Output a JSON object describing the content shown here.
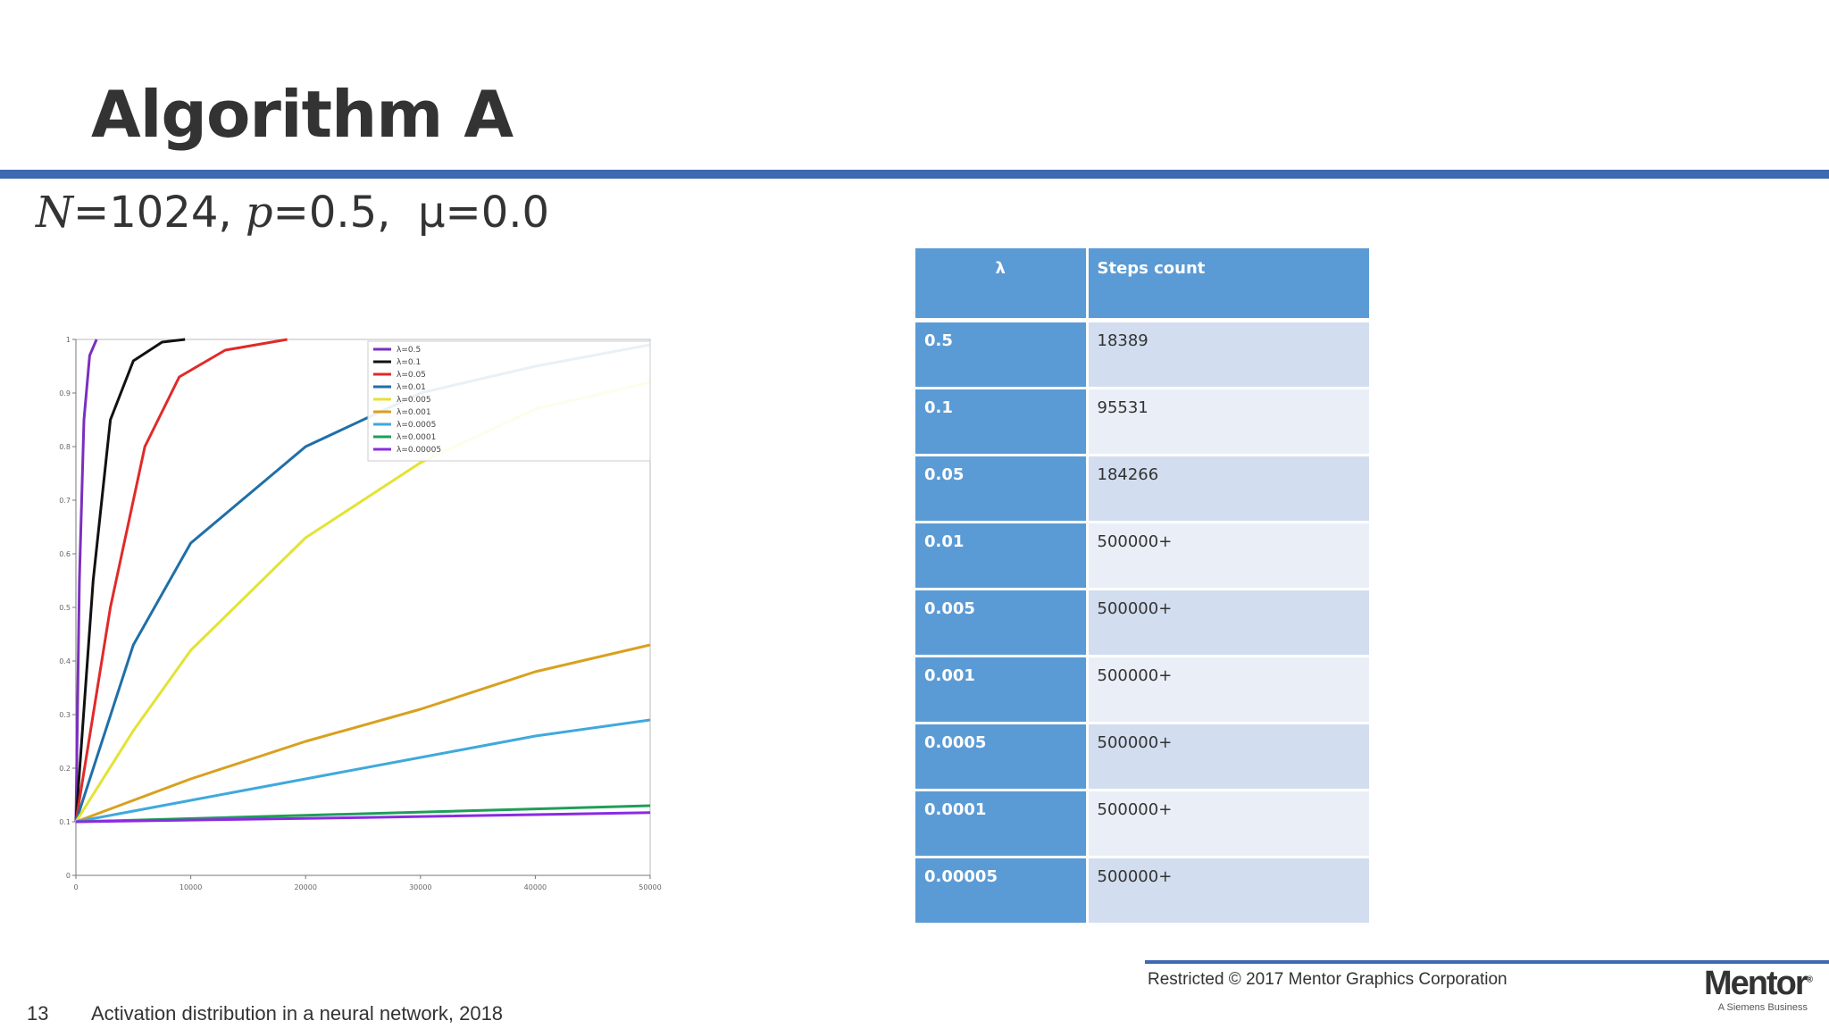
{
  "slide": {
    "title": "Algorithm A",
    "params": {
      "n_var": "N",
      "n_value": "=1024, ",
      "p_var": "p",
      "p_value": "=0.5,",
      "mu": "μ=0.0"
    }
  },
  "table": {
    "headers": [
      "λ",
      "Steps count"
    ],
    "rows": [
      {
        "lambda": "0.5",
        "steps": "18389"
      },
      {
        "lambda": "0.1",
        "steps": "95531"
      },
      {
        "lambda": "0.05",
        "steps": "184266"
      },
      {
        "lambda": "0.01",
        "steps": "500000+"
      },
      {
        "lambda": "0.005",
        "steps": "500000+"
      },
      {
        "lambda": "0.001",
        "steps": "500000+"
      },
      {
        "lambda": "0.0005",
        "steps": "500000+"
      },
      {
        "lambda": "0.0001",
        "steps": "500000+"
      },
      {
        "lambda": "0.00005",
        "steps": "500000+"
      }
    ]
  },
  "footer": {
    "restricted": "Restricted © 2017 Mentor Graphics Corporation",
    "page_number": "13",
    "caption": "Activation distribution in a neural network, 2018",
    "logo_brand": "Mentor",
    "logo_reg": "®",
    "logo_tag": "A Siemens Business"
  },
  "chart_data": {
    "type": "line",
    "title": "",
    "xlabel": "",
    "ylabel": "",
    "xlim": [
      0,
      50000
    ],
    "ylim": [
      0,
      1
    ],
    "x_ticks": [
      "0",
      "10000",
      "20000",
      "30000",
      "40000",
      "50000"
    ],
    "y_ticks": [
      "0",
      "0.1",
      "0.2",
      "0.3",
      "0.4",
      "0.5",
      "0.6",
      "0.7",
      "0.8",
      "0.9",
      "1"
    ],
    "legend_position": "top-right",
    "series": [
      {
        "name": "λ=0.5",
        "color": "#7b2fbf",
        "x": [
          0,
          300,
          700,
          1200,
          1800
        ],
        "y": [
          0.1,
          0.55,
          0.85,
          0.97,
          1.0
        ]
      },
      {
        "name": "λ=0.1",
        "color": "#111111",
        "x": [
          0,
          1500,
          3000,
          5000,
          7500,
          9500
        ],
        "y": [
          0.1,
          0.55,
          0.85,
          0.96,
          0.995,
          1.0
        ]
      },
      {
        "name": "λ=0.05",
        "color": "#e02a2a",
        "x": [
          0,
          3000,
          6000,
          9000,
          13000,
          18400
        ],
        "y": [
          0.1,
          0.5,
          0.8,
          0.93,
          0.98,
          1.0
        ]
      },
      {
        "name": "λ=0.01",
        "color": "#1f6fa8",
        "x": [
          0,
          5000,
          10000,
          20000,
          30000,
          40000,
          50000
        ],
        "y": [
          0.1,
          0.43,
          0.62,
          0.8,
          0.9,
          0.95,
          0.99
        ]
      },
      {
        "name": "λ=0.005",
        "color": "#e3e335",
        "x": [
          0,
          5000,
          10000,
          20000,
          30000,
          40000,
          50000
        ],
        "y": [
          0.1,
          0.27,
          0.42,
          0.63,
          0.77,
          0.87,
          0.92
        ]
      },
      {
        "name": "λ=0.001",
        "color": "#d9a020",
        "x": [
          0,
          10000,
          20000,
          30000,
          40000,
          50000
        ],
        "y": [
          0.1,
          0.18,
          0.25,
          0.31,
          0.38,
          0.43
        ]
      },
      {
        "name": "λ=0.0005",
        "color": "#3fa9dc",
        "x": [
          0,
          10000,
          20000,
          30000,
          40000,
          50000
        ],
        "y": [
          0.1,
          0.14,
          0.18,
          0.22,
          0.26,
          0.29
        ]
      },
      {
        "name": "λ=0.0001",
        "color": "#1f9e5a",
        "x": [
          0,
          25000,
          50000
        ],
        "y": [
          0.1,
          0.115,
          0.13
        ]
      },
      {
        "name": "λ=0.00005",
        "color": "#8a2be2",
        "x": [
          0,
          25000,
          50000
        ],
        "y": [
          0.1,
          0.108,
          0.117
        ]
      }
    ]
  }
}
